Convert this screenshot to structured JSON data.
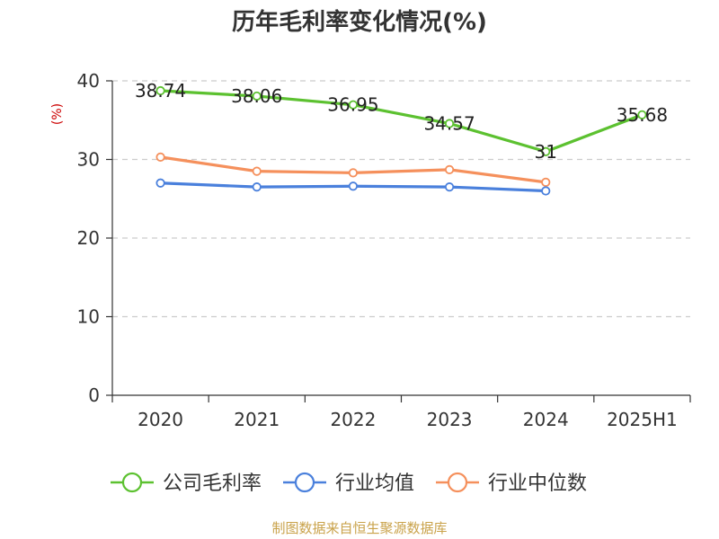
{
  "chart_data": {
    "type": "line",
    "title": "历年毛利率变化情况(%)",
    "ylabel": "(%)",
    "xlabel": "",
    "categories": [
      "2020",
      "2021",
      "2022",
      "2023",
      "2024",
      "2025H1"
    ],
    "y_ticks": [
      "0",
      "10",
      "20",
      "30",
      "40"
    ],
    "ylim": [
      0,
      40
    ],
    "grid": true,
    "legend_position": "bottom",
    "series": [
      {
        "name": "公司毛利率",
        "color": "#5cc130",
        "values": [
          38.74,
          38.06,
          36.95,
          34.57,
          31,
          35.68
        ],
        "labels": [
          "38.74",
          "38.06",
          "36.95",
          "34.57",
          "31",
          "35.68"
        ]
      },
      {
        "name": "行业均值",
        "color": "#4a80dc",
        "values": [
          27.0,
          26.5,
          26.6,
          26.5,
          26.0,
          null
        ]
      },
      {
        "name": "行业中位数",
        "color": "#f5905c",
        "values": [
          30.3,
          28.5,
          28.3,
          28.7,
          27.1,
          null
        ]
      }
    ],
    "source": "制图数据来自恒生聚源数据库"
  }
}
